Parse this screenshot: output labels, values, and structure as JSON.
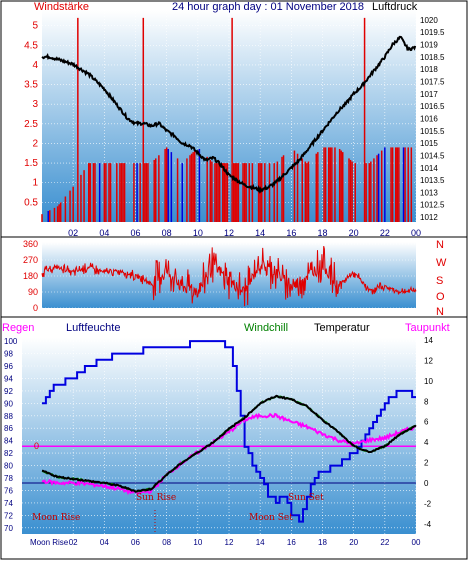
{
  "colors": {
    "red": "#e00000",
    "blue": "#0000e0",
    "magenta": "#ff00ff",
    "darkred": "#c00000",
    "green": "#008000",
    "black": "#000000",
    "navy": "#000080",
    "bgTop": "#ffffff",
    "bgBottom": "#3a8fd0"
  },
  "header": {
    "left_label": "Windstärke",
    "title": "24 hour graph day : 01 November 2018",
    "right_label": "Luftdruck"
  },
  "wind_dir": {
    "letters": [
      "N",
      "W",
      "S",
      "O",
      "N"
    ]
  },
  "lower": {
    "labels": {
      "regen": "Regen",
      "luftfeuchte": "Luftfeuchte",
      "windchill": "Windchill",
      "temperatur": "Temperatur",
      "taupunkt": "Taupunkt"
    },
    "annotations": {
      "sun_rise": "Sun Rise",
      "sun_set": "Sun Set",
      "moon_rise": "Moon Rise",
      "moon_set": "Moon Set",
      "moon_rise_axis": "Moon Rise"
    },
    "rain_zero": "0"
  },
  "chart_data": [
    {
      "type": "line",
      "name": "wind-pressure",
      "x_ticks": [
        "02",
        "04",
        "06",
        "08",
        "10",
        "12",
        "14",
        "16",
        "18",
        "20",
        "22",
        "00"
      ],
      "xlim": [
        0,
        24
      ],
      "y_left_ticks": [
        "5",
        "4.5",
        "4",
        "3.5",
        "3",
        "2.5",
        "2",
        "1.5",
        "1",
        "0.5"
      ],
      "ylim_left": [
        0,
        5.4
      ],
      "y_right_ticks": [
        "1020",
        "1019.5",
        "1019",
        "1018.5",
        "1018",
        "1017.5",
        "1017",
        "1016.5",
        "1016",
        "1015.5",
        "1015",
        "1014.5",
        "1014",
        "1013.5",
        "1013",
        "1012.5",
        "1012"
      ],
      "ylim_right": [
        1011.8,
        1020.4
      ],
      "series": [
        {
          "name": "Luftdruck",
          "x": [
            0,
            0.5,
            1,
            1.5,
            2,
            2.5,
            3,
            3.5,
            4,
            4.5,
            5,
            5.5,
            6,
            6.5,
            7,
            7.5,
            8,
            8.5,
            9,
            9.5,
            10,
            10.5,
            11,
            11.5,
            12,
            12.5,
            13,
            13.5,
            14,
            14.5,
            15,
            15.5,
            16,
            16.5,
            17,
            17.5,
            18,
            18.5,
            19,
            19.5,
            20,
            20.5,
            21,
            21.5,
            22,
            22.5,
            23,
            23.5,
            24
          ],
          "values": [
            1018.5,
            1018.5,
            1018.4,
            1018.3,
            1018.2,
            1018.0,
            1017.8,
            1017.5,
            1017.2,
            1016.8,
            1016.4,
            1016.0,
            1015.8,
            1015.8,
            1015.7,
            1015.8,
            1015.5,
            1015.3,
            1015.0,
            1014.9,
            1014.6,
            1014.3,
            1014.4,
            1014.1,
            1013.7,
            1013.5,
            1013.3,
            1013.2,
            1013.1,
            1013.2,
            1013.4,
            1013.7,
            1014.0,
            1014.3,
            1014.7,
            1015.1,
            1015.5,
            1015.9,
            1016.3,
            1016.6,
            1017.0,
            1017.3,
            1017.7,
            1018.1,
            1018.5,
            1019.0,
            1019.3,
            1018.8,
            1018.9
          ]
        },
        {
          "name": "Windstärke",
          "x": [
            0,
            1,
            2,
            3,
            4,
            5,
            6,
            7,
            8,
            9,
            10,
            11,
            12,
            13,
            14,
            15,
            16,
            17,
            18,
            19,
            20,
            21,
            22,
            23,
            24
          ],
          "values": [
            0.2,
            0.4,
            0.9,
            1.5,
            1.5,
            1.5,
            1.5,
            1.5,
            1.9,
            1.5,
            1.9,
            1.5,
            1.5,
            1.5,
            1.5,
            1.5,
            1.9,
            1.5,
            1.9,
            1.9,
            1.5,
            1.5,
            1.9,
            1.9,
            1.9
          ]
        }
      ]
    },
    {
      "type": "scatter",
      "name": "wind-direction",
      "y_ticks": [
        "360",
        "270",
        "180",
        "90",
        "0"
      ],
      "ylim": [
        0,
        360
      ],
      "series": [
        {
          "name": "Windrichtung",
          "x": [
            0,
            1,
            2,
            3,
            4,
            5,
            6,
            7,
            8,
            9,
            10,
            11,
            12,
            13,
            14,
            15,
            16,
            17,
            18,
            19,
            20,
            21,
            22,
            23,
            24
          ],
          "values": [
            200,
            230,
            200,
            230,
            200,
            210,
            180,
            140,
            210,
            120,
            90,
            250,
            150,
            90,
            250,
            200,
            120,
            180,
            250,
            120,
            200,
            100,
            120,
            90,
            100
          ]
        }
      ]
    },
    {
      "type": "line",
      "name": "temp-humidity",
      "x_ticks": [
        "02",
        "04",
        "06",
        "08",
        "10",
        "12",
        "14",
        "16",
        "18",
        "20",
        "22",
        "00"
      ],
      "xlim": [
        0,
        24
      ],
      "y_left_ticks": [
        "100",
        "98",
        "96",
        "94",
        "92",
        "90",
        "88",
        "86",
        "84",
        "82",
        "80",
        "78",
        "76",
        "74",
        "72",
        "70"
      ],
      "ylim_left": [
        69,
        100.5
      ],
      "y_right_ticks": [
        "14",
        "12",
        "10",
        "8",
        "6",
        "4",
        "2",
        "0",
        "-2",
        "-4"
      ],
      "ylim_right": [
        -5,
        14.2
      ],
      "series": [
        {
          "name": "Luftfeuchte",
          "x": [
            0,
            0.5,
            1,
            2,
            3,
            4,
            5,
            6,
            7,
            8,
            9,
            10,
            11,
            12,
            12.5,
            13,
            13.5,
            14,
            14.5,
            15,
            15.5,
            16,
            16.5,
            17,
            17.5,
            18,
            19,
            20,
            21,
            22,
            23,
            24
          ],
          "values": [
            90,
            92,
            93,
            94,
            96,
            97,
            98,
            98,
            99,
            99,
            99,
            100,
            100,
            99,
            92,
            83,
            80,
            78,
            75,
            74,
            75,
            72,
            71,
            75,
            78,
            79,
            80,
            82,
            86,
            90,
            92,
            91
          ]
        },
        {
          "name": "Temperatur",
          "x": [
            0,
            1,
            2,
            3,
            4,
            5,
            6,
            7,
            8,
            9,
            10,
            11,
            12,
            13,
            14,
            15,
            16,
            17,
            18,
            19,
            20,
            21,
            22,
            23,
            24
          ],
          "values": [
            1.2,
            0.6,
            0.4,
            0.2,
            0.0,
            -0.3,
            -0.8,
            -0.6,
            0.8,
            2.0,
            3.0,
            4.0,
            5.3,
            6.4,
            7.8,
            8.5,
            8.2,
            7.5,
            6.2,
            5.0,
            3.6,
            3.0,
            3.6,
            4.8,
            5.6
          ]
        },
        {
          "name": "Windchill",
          "x": [
            0,
            1,
            2,
            3,
            4,
            5,
            6,
            7,
            8,
            9,
            10,
            11,
            12,
            13,
            14,
            15,
            16,
            17,
            18,
            19,
            20,
            21,
            22,
            23,
            24
          ],
          "values": [
            1.2,
            0.6,
            0.4,
            0.2,
            0.0,
            -0.3,
            -0.8,
            -0.6,
            0.8,
            2.0,
            3.0,
            4.0,
            5.3,
            6.4,
            7.8,
            8.5,
            8.2,
            7.5,
            6.2,
            5.0,
            3.6,
            3.0,
            3.6,
            4.8,
            5.6
          ]
        },
        {
          "name": "Taupunkt",
          "x": [
            0,
            1,
            2,
            3,
            4,
            5,
            6,
            7,
            8,
            9,
            10,
            11,
            12,
            13,
            14,
            15,
            16,
            17,
            18,
            19,
            20,
            21,
            22,
            23,
            24
          ],
          "values": [
            0.2,
            0.0,
            0.0,
            -0.1,
            -0.3,
            -0.6,
            -1.0,
            -0.8,
            0.8,
            2.0,
            3.0,
            4.0,
            5.0,
            6.2,
            6.6,
            6.6,
            6.0,
            5.5,
            4.8,
            4.2,
            3.8,
            4.2,
            4.4,
            5.0,
            5.5
          ]
        }
      ]
    }
  ]
}
